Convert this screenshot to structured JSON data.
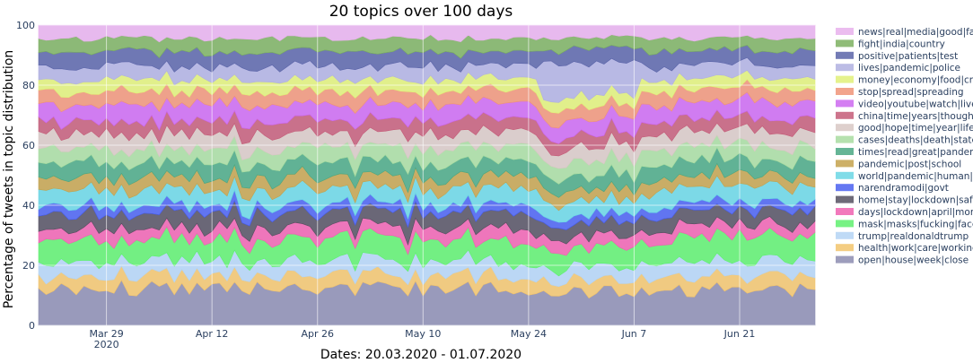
{
  "chart_data": {
    "type": "area",
    "stacked": true,
    "title": "20 topics over 100 days",
    "xlabel": "Dates: 20.03.2020 - 01.07.2020",
    "ylabel": "Percentage of tweets in topic distribution",
    "xlim": [
      "2020-03-20",
      "2020-07-01"
    ],
    "ylim": [
      0,
      100
    ],
    "y_ticks": [
      0,
      20,
      40,
      60,
      80,
      100
    ],
    "x_ticks": [
      {
        "date": "2020-03-29",
        "label": "Mar 29",
        "sublabel": "2020"
      },
      {
        "date": "2020-04-12",
        "label": "Apr 12",
        "sublabel": ""
      },
      {
        "date": "2020-04-26",
        "label": "Apr 26",
        "sublabel": ""
      },
      {
        "date": "2020-05-10",
        "label": "May 10",
        "sublabel": ""
      },
      {
        "date": "2020-05-24",
        "label": "May 24",
        "sublabel": ""
      },
      {
        "date": "2020-06-07",
        "label": "Jun 7",
        "sublabel": ""
      },
      {
        "date": "2020-06-21",
        "label": "Jun 21",
        "sublabel": ""
      }
    ],
    "grid": true,
    "legend_position": "right",
    "series": [
      {
        "name": "open|house|week|close",
        "color": "#8c8cb0",
        "mean": 11.0
      },
      {
        "name": "health|work|care|working",
        "color": "#f2c46c",
        "mean": 4.0
      },
      {
        "name": "trump|realdonaldtrump",
        "color": "#b4d4f4",
        "mean": 4.5
      },
      {
        "name": "mask|masks|fucking|face",
        "color": "#5ff06e",
        "mean": 6.5
      },
      {
        "name": "days|lockdown|april|month",
        "color": "#f062b0",
        "mean": 3.5
      },
      {
        "name": "home|stay|lockdown|safe",
        "color": "#555060",
        "mean": 4.5
      },
      {
        "name": "narendramodi|govt",
        "color": "#4a60f0",
        "mean": 2.5
      },
      {
        "name": "world|pandemic|human|fear",
        "color": "#6ad6e4",
        "mean": 5.0
      },
      {
        "name": "pandemic|post|school",
        "color": "#c4a24c",
        "mean": 3.5
      },
      {
        "name": "times|read|great|pandemic",
        "color": "#4aa884",
        "mean": 4.5
      },
      {
        "name": "cases|deaths|death|state",
        "color": "#a8dca0",
        "mean": 4.5
      },
      {
        "name": "good|hope|time|year|life",
        "color": "#d8c8c4",
        "mean": 4.5
      },
      {
        "name": "china|time|years|thought",
        "color": "#c45c78",
        "mean": 4.0
      },
      {
        "name": "video|youtube|watch|live",
        "color": "#cc68f0",
        "mean": 5.0
      },
      {
        "name": "stop|spread|spreading",
        "color": "#f09478",
        "mean": 4.0
      },
      {
        "name": "money|economy|food|crisis",
        "color": "#e0f078",
        "mean": 3.5
      },
      {
        "name": "lives|pandemic|police",
        "color": "#b0b0e0",
        "mean": 4.0
      },
      {
        "name": "positive|patients|test",
        "color": "#5a64a8",
        "mean": 4.5
      },
      {
        "name": "fight|india|country",
        "color": "#7cb060",
        "mean": 4.0
      },
      {
        "name": "news|real|media|good|fake",
        "color": "#e8b0ec",
        "mean": 4.0
      }
    ]
  }
}
